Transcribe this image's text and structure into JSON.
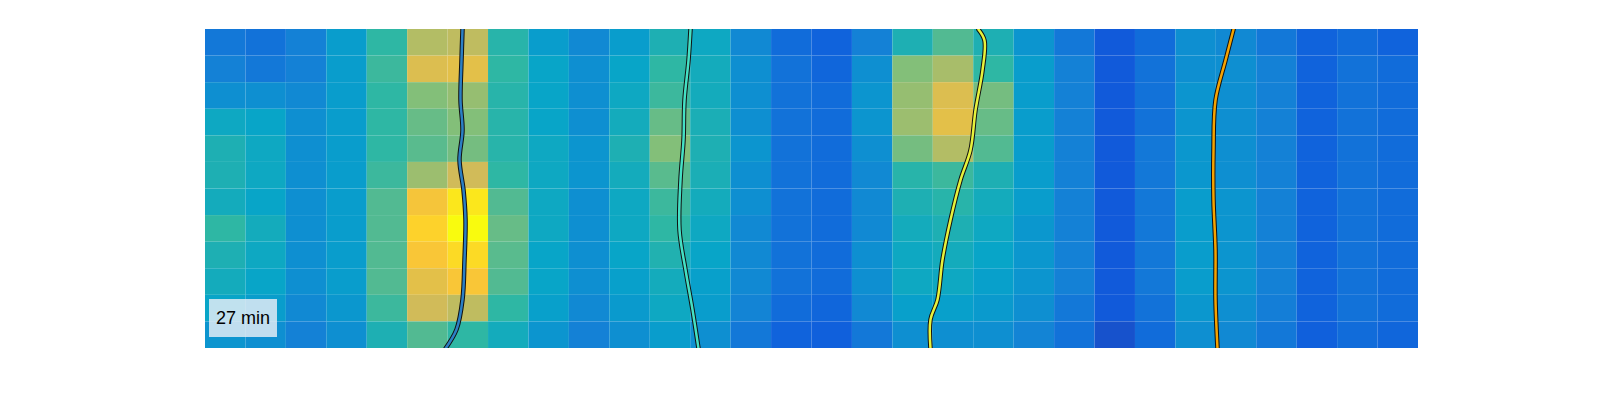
{
  "chart_data": {
    "type": "heatmap",
    "annotation": "27 min",
    "xlim": [
      0,
      1213
    ],
    "ylim": [
      0,
      320
    ],
    "tick_labels": false,
    "zlim": [
      0,
      1
    ],
    "cells": [
      [
        0.22,
        0.2,
        0.25,
        0.35,
        0.5,
        0.7,
        0.72,
        0.48,
        0.35,
        0.28,
        0.35,
        0.45,
        0.4,
        0.28,
        0.18,
        0.15,
        0.25,
        0.45,
        0.55,
        0.45,
        0.32,
        0.22,
        0.12,
        0.18,
        0.3,
        0.28,
        0.22,
        0.15,
        0.18,
        0.15
      ],
      [
        0.25,
        0.22,
        0.25,
        0.35,
        0.52,
        0.78,
        0.8,
        0.5,
        0.38,
        0.3,
        0.38,
        0.5,
        0.42,
        0.3,
        0.2,
        0.16,
        0.3,
        0.62,
        0.68,
        0.5,
        0.35,
        0.25,
        0.12,
        0.2,
        0.3,
        0.3,
        0.25,
        0.15,
        0.2,
        0.18
      ],
      [
        0.3,
        0.3,
        0.28,
        0.35,
        0.5,
        0.62,
        0.65,
        0.48,
        0.38,
        0.3,
        0.4,
        0.52,
        0.42,
        0.3,
        0.2,
        0.18,
        0.32,
        0.65,
        0.78,
        0.6,
        0.35,
        0.25,
        0.12,
        0.2,
        0.32,
        0.3,
        0.25,
        0.15,
        0.2,
        0.18
      ],
      [
        0.4,
        0.38,
        0.3,
        0.35,
        0.5,
        0.58,
        0.62,
        0.48,
        0.38,
        0.3,
        0.42,
        0.58,
        0.44,
        0.3,
        0.2,
        0.18,
        0.32,
        0.66,
        0.8,
        0.58,
        0.35,
        0.25,
        0.12,
        0.2,
        0.32,
        0.3,
        0.25,
        0.15,
        0.2,
        0.18
      ],
      [
        0.45,
        0.4,
        0.3,
        0.35,
        0.5,
        0.56,
        0.6,
        0.48,
        0.4,
        0.32,
        0.45,
        0.62,
        0.45,
        0.32,
        0.2,
        0.18,
        0.3,
        0.6,
        0.7,
        0.55,
        0.35,
        0.25,
        0.12,
        0.22,
        0.33,
        0.3,
        0.25,
        0.15,
        0.2,
        0.18
      ],
      [
        0.45,
        0.4,
        0.3,
        0.35,
        0.52,
        0.66,
        0.75,
        0.5,
        0.4,
        0.32,
        0.42,
        0.56,
        0.44,
        0.3,
        0.2,
        0.18,
        0.28,
        0.48,
        0.52,
        0.45,
        0.35,
        0.25,
        0.12,
        0.22,
        0.33,
        0.3,
        0.25,
        0.15,
        0.2,
        0.18
      ],
      [
        0.42,
        0.38,
        0.3,
        0.35,
        0.55,
        0.85,
        0.95,
        0.55,
        0.4,
        0.3,
        0.4,
        0.52,
        0.42,
        0.3,
        0.2,
        0.18,
        0.28,
        0.45,
        0.48,
        0.42,
        0.35,
        0.25,
        0.12,
        0.22,
        0.35,
        0.32,
        0.25,
        0.15,
        0.2,
        0.18
      ],
      [
        0.5,
        0.42,
        0.3,
        0.35,
        0.55,
        0.9,
        1.0,
        0.58,
        0.4,
        0.3,
        0.4,
        0.5,
        0.4,
        0.28,
        0.2,
        0.18,
        0.28,
        0.42,
        0.45,
        0.4,
        0.33,
        0.25,
        0.12,
        0.22,
        0.35,
        0.32,
        0.25,
        0.15,
        0.2,
        0.18
      ],
      [
        0.45,
        0.4,
        0.3,
        0.35,
        0.55,
        0.86,
        0.92,
        0.56,
        0.38,
        0.3,
        0.38,
        0.46,
        0.38,
        0.28,
        0.2,
        0.18,
        0.3,
        0.4,
        0.42,
        0.38,
        0.33,
        0.25,
        0.12,
        0.22,
        0.35,
        0.32,
        0.25,
        0.15,
        0.2,
        0.18
      ],
      [
        0.42,
        0.38,
        0.3,
        0.35,
        0.55,
        0.8,
        0.86,
        0.55,
        0.38,
        0.3,
        0.36,
        0.42,
        0.36,
        0.28,
        0.2,
        0.18,
        0.3,
        0.4,
        0.4,
        0.36,
        0.32,
        0.25,
        0.12,
        0.22,
        0.35,
        0.32,
        0.25,
        0.15,
        0.2,
        0.18
      ],
      [
        0.38,
        0.35,
        0.28,
        0.33,
        0.52,
        0.75,
        0.72,
        0.5,
        0.36,
        0.28,
        0.34,
        0.4,
        0.35,
        0.26,
        0.18,
        0.16,
        0.28,
        0.36,
        0.36,
        0.34,
        0.3,
        0.22,
        0.12,
        0.2,
        0.33,
        0.3,
        0.24,
        0.15,
        0.2,
        0.18
      ],
      [
        0.32,
        0.3,
        0.25,
        0.3,
        0.45,
        0.55,
        0.5,
        0.42,
        0.32,
        0.25,
        0.3,
        0.35,
        0.3,
        0.22,
        0.15,
        0.14,
        0.22,
        0.3,
        0.3,
        0.3,
        0.26,
        0.2,
        0.1,
        0.18,
        0.3,
        0.28,
        0.22,
        0.14,
        0.18,
        0.16
      ]
    ],
    "series": [
      {
        "type": "line",
        "color": "#2b7fc4",
        "x": [
          257,
          256,
          255,
          257,
          254,
          258,
          260,
          259,
          257,
          251,
          240
        ],
        "y": [
          0,
          31,
          71,
          101,
          131,
          161,
          191,
          231,
          271,
          301,
          320
        ]
      },
      {
        "type": "line",
        "color": "#44e0c4",
        "x": [
          485,
          483,
          479,
          478,
          475,
          474,
          480,
          487,
          493
        ],
        "y": [
          0,
          31,
          71,
          111,
          151,
          201,
          241,
          281,
          320
        ]
      },
      {
        "type": "line",
        "color": "#e6f23c",
        "x": [
          773,
          779,
          777,
          770,
          765,
          755,
          745,
          737,
          732,
          725,
          725
        ],
        "y": [
          0,
          11,
          41,
          81,
          121,
          151,
          191,
          231,
          271,
          291,
          320
        ]
      },
      {
        "type": "line",
        "color": "#f5a300",
        "x": [
          1028,
          1020,
          1010,
          1008,
          1008,
          1010,
          1010,
          1012
        ],
        "y": [
          0,
          31,
          71,
          121,
          171,
          221,
          271,
          320
        ]
      }
    ]
  }
}
